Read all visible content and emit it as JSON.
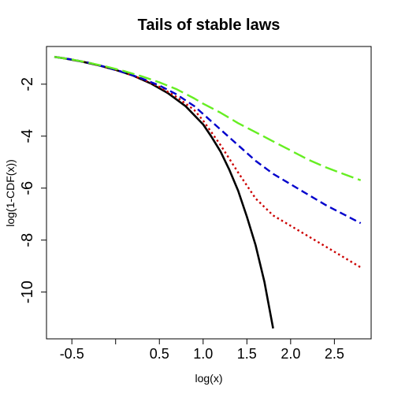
{
  "chart_data": {
    "type": "line",
    "title": "Tails of stable laws",
    "xlabel": "log(x)",
    "ylabel": "log(1-CDF(x))",
    "xlim": [
      -0.79,
      2.92
    ],
    "ylim": [
      -11.8,
      -0.55
    ],
    "xticks": [
      -0.5,
      0.5,
      1.0,
      1.5,
      2.0,
      2.5
    ],
    "xtick_labels": [
      "-0.5",
      "0.5",
      "1.0",
      "1.5",
      "2.0",
      "2.5"
    ],
    "xticks_unlabeled": [
      0.0
    ],
    "yticks": [
      -2,
      -4,
      -6,
      -8,
      -10
    ],
    "ytick_labels": [
      "-2",
      "-4",
      "-6",
      "-8",
      "-10"
    ],
    "grid": false,
    "series": [
      {
        "color": "#000000",
        "line_style": "solid",
        "x": [
          -0.7,
          -0.6,
          -0.4,
          -0.2,
          0.0,
          0.2,
          0.4,
          0.6,
          0.8,
          1.0,
          1.1,
          1.2,
          1.3,
          1.4,
          1.5,
          1.6,
          1.7,
          1.8
        ],
        "y": [
          -0.95,
          -1.0,
          -1.12,
          -1.27,
          -1.45,
          -1.67,
          -1.97,
          -2.35,
          -2.85,
          -3.55,
          -4.05,
          -4.6,
          -5.3,
          -6.1,
          -7.1,
          -8.2,
          -9.6,
          -11.4
        ]
      },
      {
        "color": "#cc0000",
        "line_style": "dotted",
        "x": [
          -0.7,
          -0.5,
          -0.3,
          -0.1,
          0.1,
          0.3,
          0.5,
          0.7,
          0.9,
          1.0,
          1.2,
          1.4,
          1.6,
          1.8,
          2.0,
          2.2,
          2.4,
          2.6,
          2.8
        ],
        "y": [
          -0.95,
          -1.05,
          -1.18,
          -1.35,
          -1.55,
          -1.8,
          -2.1,
          -2.5,
          -3.0,
          -3.4,
          -4.35,
          -5.4,
          -6.4,
          -7.05,
          -7.45,
          -7.85,
          -8.25,
          -8.65,
          -9.05
        ]
      },
      {
        "color": "#0000cc",
        "line_style": "dashed",
        "x": [
          -0.7,
          -0.5,
          -0.3,
          -0.1,
          0.1,
          0.3,
          0.5,
          0.7,
          0.9,
          1.0,
          1.2,
          1.4,
          1.6,
          1.8,
          2.0,
          2.2,
          2.4,
          2.6,
          2.8
        ],
        "y": [
          -0.95,
          -1.05,
          -1.18,
          -1.35,
          -1.55,
          -1.78,
          -2.05,
          -2.4,
          -2.85,
          -3.15,
          -3.75,
          -4.35,
          -4.95,
          -5.45,
          -5.85,
          -6.25,
          -6.65,
          -7.0,
          -7.35
        ]
      },
      {
        "color": "#66ee22",
        "line_style": "longdash",
        "x": [
          -0.7,
          -0.5,
          -0.3,
          -0.1,
          0.1,
          0.3,
          0.5,
          0.7,
          0.9,
          1.0,
          1.2,
          1.4,
          1.6,
          1.8,
          2.0,
          2.2,
          2.4,
          2.6,
          2.8
        ],
        "y": [
          -0.95,
          -1.05,
          -1.18,
          -1.33,
          -1.5,
          -1.7,
          -1.93,
          -2.2,
          -2.55,
          -2.75,
          -3.1,
          -3.5,
          -3.85,
          -4.2,
          -4.55,
          -4.9,
          -5.2,
          -5.45,
          -5.7
        ]
      }
    ]
  }
}
